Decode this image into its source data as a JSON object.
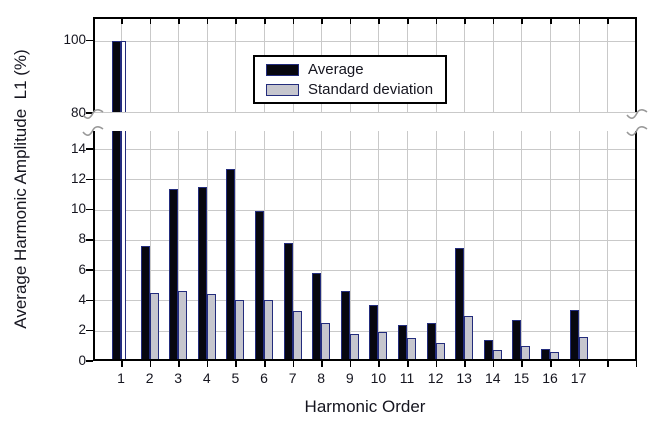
{
  "chart_data": {
    "type": "bar",
    "title": "",
    "xlabel": "Harmonic Order",
    "ylabel": "Average Harmonic Amplitude  L1 (%)",
    "categories": [
      "1",
      "2",
      "3",
      "4",
      "5",
      "6",
      "7",
      "8",
      "9",
      "10",
      "11",
      "12",
      "13",
      "14",
      "15",
      "16",
      "17"
    ],
    "series": [
      {
        "name": "Average",
        "fill": "#07070f",
        "border": "#232c7c",
        "values": [
          100,
          7.6,
          11.4,
          11.5,
          12.7,
          9.9,
          7.8,
          5.8,
          4.6,
          3.7,
          2.4,
          2.5,
          7.5,
          1.4,
          2.7,
          0.8,
          3.4
        ]
      },
      {
        "name": "Standard deviation",
        "fill": "#c6c6ce",
        "border": "#232c7c",
        "values": [
          null,
          4.5,
          4.6,
          4.4,
          4.0,
          4.0,
          3.3,
          2.5,
          1.8,
          1.9,
          1.5,
          1.2,
          3.0,
          0.7,
          1.0,
          0.6,
          1.6
        ]
      }
    ],
    "axis_break": {
      "upper_range": [
        80,
        106.5
      ],
      "lower_range": [
        0,
        15.2
      ],
      "upper_ticks": [
        80,
        100
      ],
      "lower_ticks": [
        0,
        2,
        4,
        6,
        8,
        10,
        12,
        14
      ]
    },
    "grid": true,
    "legend_position": "upper center",
    "colors": {
      "grid": "#c9c9c9",
      "axis": "#000000",
      "break_mark": "#999999",
      "text": "#15151f",
      "background": "#ffffff"
    }
  }
}
